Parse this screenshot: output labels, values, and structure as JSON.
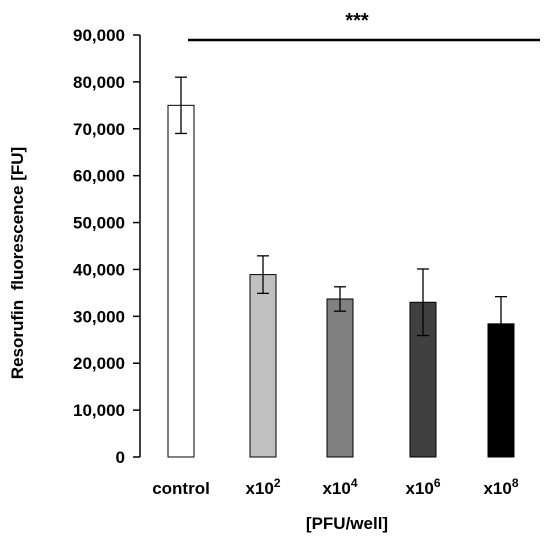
{
  "chart_data": {
    "type": "bar",
    "title": "",
    "xlabel": "[PFU/well]",
    "ylabel": "Resorufin  fluorescence [FU]",
    "ylim": [
      0,
      90000
    ],
    "yticks": [
      0,
      10000,
      20000,
      30000,
      40000,
      50000,
      60000,
      70000,
      80000,
      90000
    ],
    "ytick_labels": [
      "0",
      "10,000",
      "20,000",
      "30,000",
      "40,000",
      "50,000",
      "60,000",
      "70,000",
      "80,000",
      "90,000"
    ],
    "categories": [
      {
        "base": "control",
        "exp": ""
      },
      {
        "base": "x10",
        "exp": "2"
      },
      {
        "base": "x10",
        "exp": "4"
      },
      {
        "base": "x10",
        "exp": "6"
      },
      {
        "base": "x10",
        "exp": "8"
      }
    ],
    "values": [
      75000,
      38900,
      33700,
      33000,
      28400
    ],
    "errors": [
      6000,
      4000,
      2600,
      7100,
      5800
    ],
    "bar_colors": [
      "#ffffff",
      "#c0c0c0",
      "#808080",
      "#404040",
      "#000000"
    ],
    "significance": {
      "label": "***"
    },
    "grid": false,
    "legend": "none"
  }
}
